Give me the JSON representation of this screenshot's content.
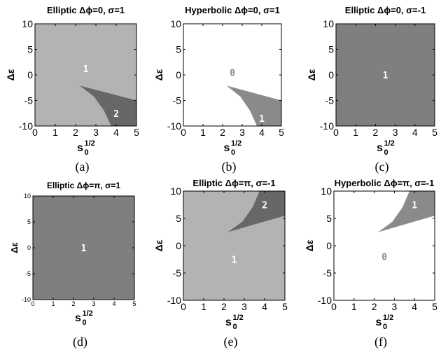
{
  "chart_data": [
    {
      "id": "a",
      "type": "heatmap",
      "title": "Elliptic Δϕ=0, σ=1",
      "caption": "(a)",
      "xlabel_base": "s",
      "xlabel_sub": "0",
      "xlabel_sup": "1/2",
      "ylabel": "Δε",
      "xlim": [
        0,
        5
      ],
      "ylim": [
        -10,
        10
      ],
      "xticks": [
        "0",
        "1",
        "2",
        "3",
        "4",
        "5"
      ],
      "yticks": [
        "10",
        "5",
        "0",
        "-5",
        "-10"
      ],
      "background": "#b3b3b3",
      "regions": [
        {
          "color": "#676767",
          "points": [
            [
              2.2,
              -2.1
            ],
            [
              5,
              -5
            ],
            [
              5,
              -10
            ],
            [
              3.75,
              -10
            ],
            [
              3.4,
              -7
            ],
            [
              2.9,
              -4.2
            ]
          ]
        }
      ],
      "labels": [
        {
          "text": "1",
          "x": 2.5,
          "y": 1.2
        },
        {
          "text": "2",
          "x": 4.0,
          "y": -7.5
        }
      ]
    },
    {
      "id": "b",
      "type": "heatmap",
      "title": "Hyperbolic Δϕ=0, σ=1",
      "caption": "(b)",
      "xlabel_base": "s",
      "xlabel_sub": "0",
      "xlabel_sup": "1/2",
      "ylabel": "Δε",
      "xlim": [
        0,
        5
      ],
      "ylim": [
        -10,
        10
      ],
      "xticks": [
        "0",
        "1",
        "2",
        "3",
        "4",
        "5"
      ],
      "yticks": [
        "10",
        "5",
        "0",
        "-5",
        "-10"
      ],
      "background": "#ffffff",
      "regions": [
        {
          "color": "#8a8a8a",
          "points": [
            [
              2.2,
              -2.1
            ],
            [
              5,
              -5
            ],
            [
              5,
              -10
            ],
            [
              3.75,
              -10
            ],
            [
              3.4,
              -7
            ],
            [
              2.9,
              -4.2
            ]
          ]
        }
      ],
      "labels": [
        {
          "text": "0",
          "x": 2.5,
          "y": 0.5,
          "color": "#8a8a8a"
        },
        {
          "text": "1",
          "x": 4.0,
          "y": -8.5
        }
      ]
    },
    {
      "id": "c",
      "type": "heatmap",
      "title": "Elliptic Δϕ=0, σ=-1",
      "caption": "(c)",
      "xlabel_base": "s",
      "xlabel_sub": "0",
      "xlabel_sup": "1/2",
      "ylabel": "Δε",
      "xlim": [
        0,
        5
      ],
      "ylim": [
        -10,
        10
      ],
      "xticks": [
        "0",
        "1",
        "2",
        "3",
        "4",
        "5"
      ],
      "yticks": [
        "10",
        "5",
        "0",
        "-5",
        "-10"
      ],
      "background": "#7f7f7f",
      "regions": [],
      "labels": [
        {
          "text": "1",
          "x": 2.5,
          "y": 0
        }
      ]
    },
    {
      "id": "d",
      "type": "heatmap",
      "title": "Elliptic Δϕ=π, σ=1",
      "caption": "(d)",
      "xlabel_base": "s",
      "xlabel_sub": "0",
      "xlabel_sup": "1/2",
      "ylabel": "Δε",
      "xlim": [
        0,
        5
      ],
      "ylim": [
        -10,
        10
      ],
      "xticks": [
        "0",
        "1",
        "2",
        "3",
        "4",
        "5"
      ],
      "yticks": [
        "10",
        "5",
        "0",
        "-5",
        "-10"
      ],
      "background": "#7f7f7f",
      "regions": [],
      "labels": [
        {
          "text": "1",
          "x": 2.5,
          "y": 0
        }
      ]
    },
    {
      "id": "e",
      "type": "heatmap",
      "title": "Elliptic Δϕ=π, σ=-1",
      "caption": "(e)",
      "xlabel_base": "s",
      "xlabel_sub": "0",
      "xlabel_sup": "1/2",
      "ylabel": "Δε",
      "xlim": [
        0,
        5
      ],
      "ylim": [
        -10,
        10
      ],
      "xticks": [
        "0",
        "1",
        "2",
        "3",
        "4",
        "5"
      ],
      "yticks": [
        "10",
        "5",
        "0",
        "-5",
        "-10"
      ],
      "background": "#b3b3b3",
      "regions": [
        {
          "color": "#676767",
          "points": [
            [
              2.2,
              2.5
            ],
            [
              5,
              5.5
            ],
            [
              5,
              10
            ],
            [
              3.75,
              10
            ],
            [
              3.4,
              7
            ],
            [
              2.9,
              4.4
            ]
          ]
        }
      ],
      "labels": [
        {
          "text": "2",
          "x": 4.0,
          "y": 7.5
        },
        {
          "text": "1",
          "x": 2.5,
          "y": -2.5
        }
      ]
    },
    {
      "id": "f",
      "type": "heatmap",
      "title": "Hyperbolic Δϕ=π, σ=-1",
      "caption": "(f)",
      "xlabel_base": "s",
      "xlabel_sub": "0",
      "xlabel_sup": "1/2",
      "ylabel": "Δε",
      "xlim": [
        0,
        5
      ],
      "ylim": [
        -10,
        10
      ],
      "xticks": [
        "0",
        "1",
        "2",
        "3",
        "4",
        "5"
      ],
      "yticks": [
        "10",
        "5",
        "0",
        "-5",
        "-10"
      ],
      "background": "#ffffff",
      "regions": [
        {
          "color": "#8a8a8a",
          "points": [
            [
              2.2,
              2.5
            ],
            [
              5,
              5.5
            ],
            [
              5,
              10
            ],
            [
              3.75,
              10
            ],
            [
              3.4,
              7
            ],
            [
              2.9,
              4.4
            ]
          ]
        }
      ],
      "labels": [
        {
          "text": "1",
          "x": 4.0,
          "y": 7.5
        },
        {
          "text": "0",
          "x": 2.5,
          "y": -2.0,
          "color": "#8a8a8a"
        }
      ]
    }
  ]
}
